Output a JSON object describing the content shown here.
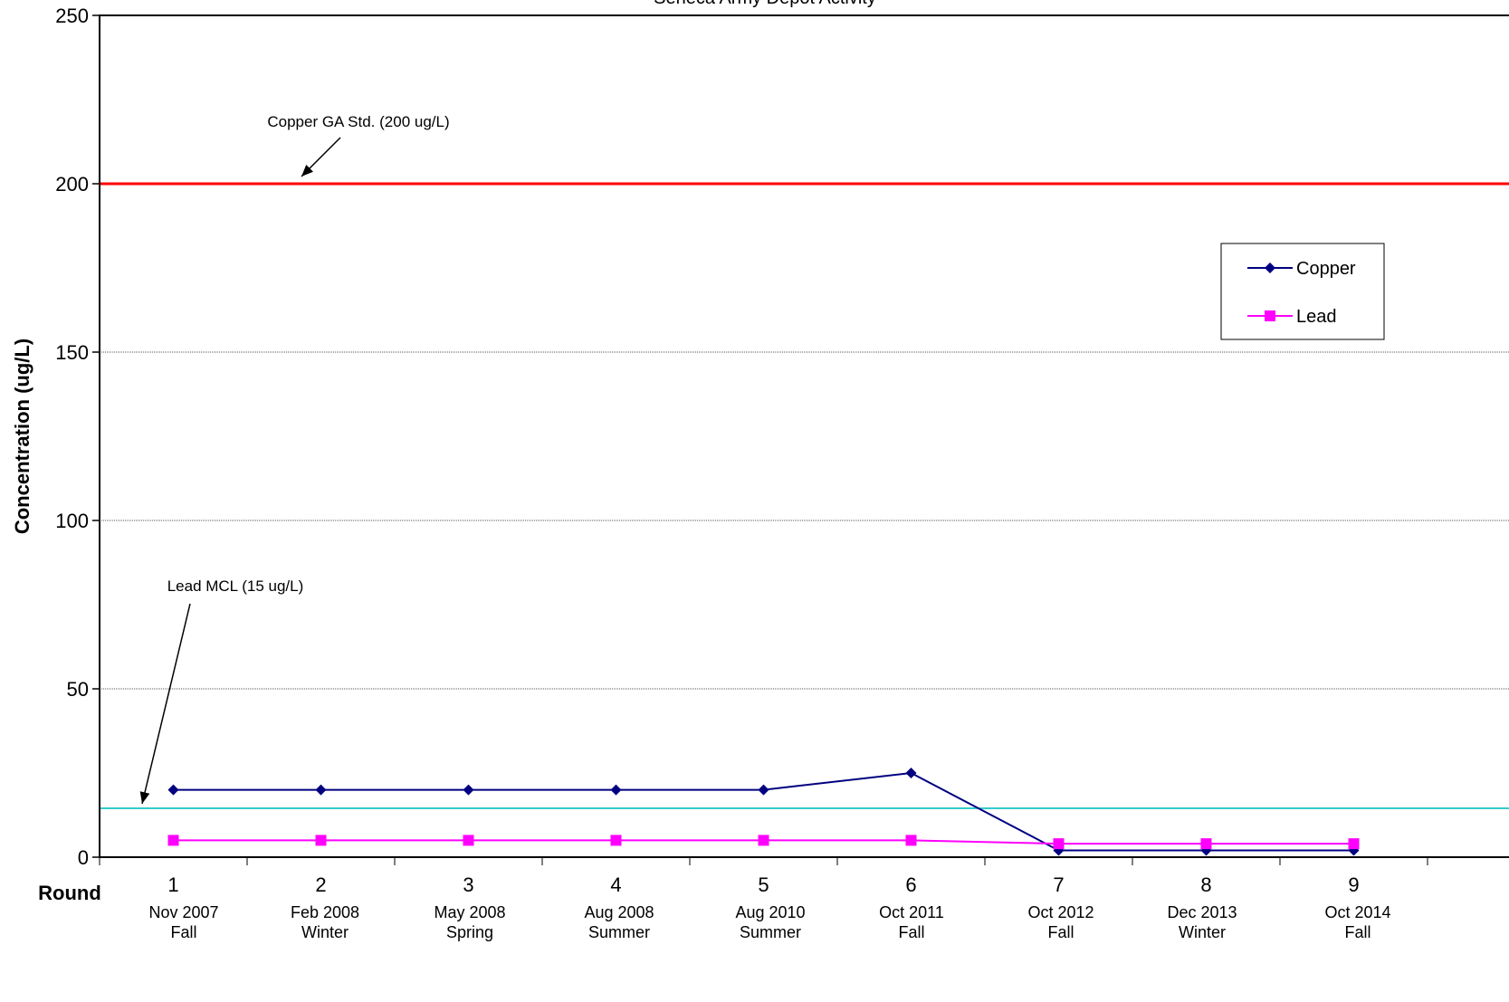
{
  "chart_data": {
    "type": "line",
    "title": "Seneca Army Depot Activity",
    "xlabel": "Round",
    "ylabel": "Concentration (ug/L)",
    "ylim": [
      0,
      250
    ],
    "yticks": [
      0,
      50,
      100,
      150,
      200,
      250
    ],
    "grid": "horizontal dotted",
    "legend_position": "right",
    "categories": [
      {
        "round": "1",
        "date": "Nov 2007",
        "season": "Fall"
      },
      {
        "round": "2",
        "date": "Feb 2008",
        "season": "Winter"
      },
      {
        "round": "3",
        "date": "May 2008",
        "season": "Spring"
      },
      {
        "round": "4",
        "date": "Aug 2008",
        "season": "Summer"
      },
      {
        "round": "5",
        "date": "Aug 2010",
        "season": "Summer"
      },
      {
        "round": "6",
        "date": "Oct 2011",
        "season": "Fall"
      },
      {
        "round": "7",
        "date": "Oct 2012",
        "season": "Fall"
      },
      {
        "round": "8",
        "date": "Dec 2013",
        "season": "Winter"
      },
      {
        "round": "9",
        "date": "Oct 2014",
        "season": "Fall"
      }
    ],
    "series": [
      {
        "name": "Copper",
        "color": "#000080",
        "marker": "diamond",
        "values": [
          20,
          20,
          20,
          20,
          20,
          25,
          2,
          2,
          2
        ]
      },
      {
        "name": "Lead",
        "color": "#FF00FF",
        "marker": "square",
        "values": [
          5,
          5,
          5,
          5,
          5,
          5,
          4,
          4,
          4
        ]
      }
    ],
    "reference_lines": [
      {
        "label": "Copper GA Std. (200 ug/L)",
        "value": 200,
        "color": "#FF0000"
      },
      {
        "label": "Lead MCL (15 ug/L)",
        "value": 14.5,
        "color": "#33CCCC"
      }
    ]
  }
}
